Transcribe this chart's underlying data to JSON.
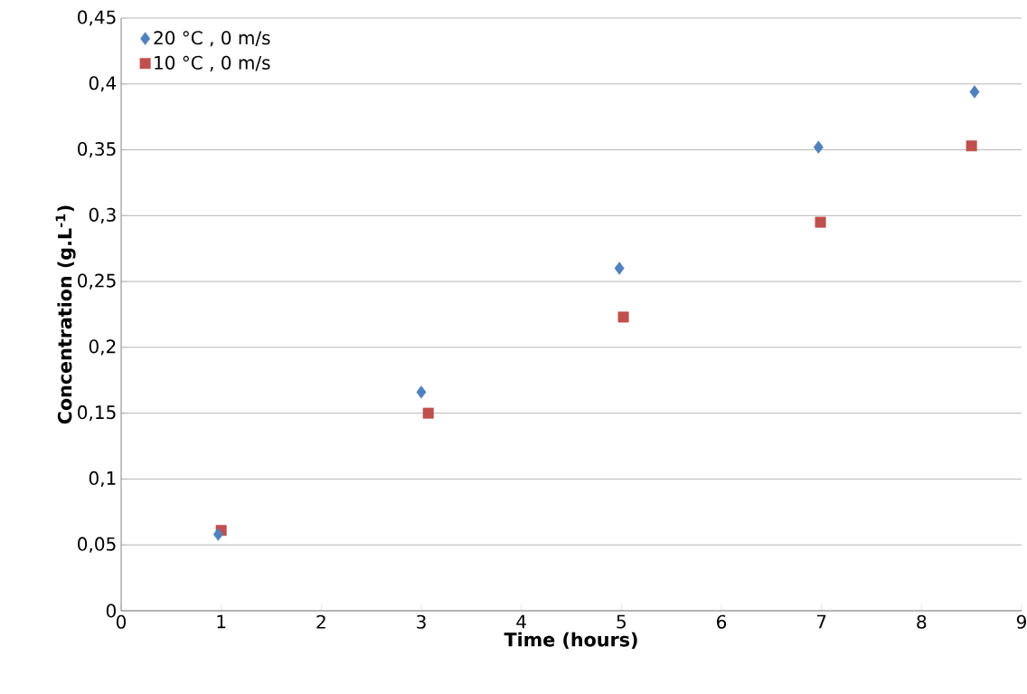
{
  "chart_data": {
    "type": "scatter",
    "xlabel": "Time (hours)",
    "ylabel": "Concentration (g.L$^{-1}$)",
    "xlim": [
      0,
      9
    ],
    "xticks": [
      0,
      1,
      2,
      3,
      4,
      5,
      6,
      7,
      8,
      9
    ],
    "ylim": [
      0,
      0.45
    ],
    "yticks": [
      0,
      {
        "value": 0.05,
        "label": "0,05"
      },
      {
        "value": 0.1,
        "label": "0,1"
      },
      {
        "value": 0.15,
        "label": "0,15"
      },
      {
        "value": 0.2,
        "label": "0,2"
      },
      {
        "value": 0.25,
        "label": "0,25"
      },
      {
        "value": 0.3,
        "label": "0,3"
      },
      {
        "value": 0.35,
        "label": "0,35"
      },
      {
        "value": 0.4,
        "label": "0,4"
      },
      {
        "value": 0.45,
        "label": "0,45"
      }
    ],
    "grid": "y",
    "legend": "top left",
    "series": [
      {
        "name": "20 °C , 0 m/s",
        "color": "#4f81bd",
        "marker": "diamond",
        "x": [
          0.97,
          3.0,
          4.98,
          6.97,
          8.53
        ],
        "values": [
          0.058,
          0.166,
          0.26,
          0.352,
          0.394
        ]
      },
      {
        "name": "10 °C , 0 m/s",
        "color": "#c0504d",
        "marker": "square",
        "x": [
          1.0,
          3.07,
          5.02,
          6.99,
          8.5
        ],
        "values": [
          0.061,
          0.15,
          0.223,
          0.295,
          0.353
        ]
      }
    ]
  }
}
